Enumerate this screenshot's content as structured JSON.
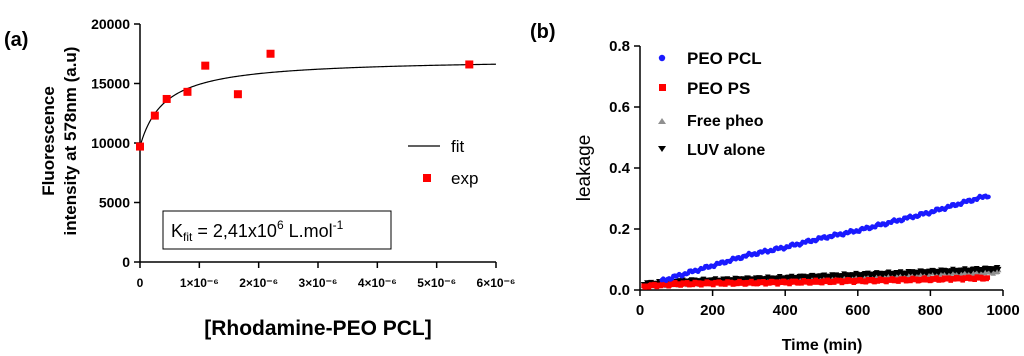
{
  "chart_data": [
    {
      "type": "scatter",
      "panel_label": "(a)",
      "xlabel": "[Rhodamine-PEO PCL]",
      "ylabel": [
        "Fluorescence",
        "intensity at 578nm (a.u)"
      ],
      "xlim": [
        0,
        6e-06
      ],
      "ylim": [
        0,
        20000
      ],
      "x_ticks": [
        0,
        1e-06,
        2e-06,
        3e-06,
        4e-06,
        5e-06,
        6e-06
      ],
      "x_tick_labels": [
        "0",
        "1×10⁻⁶",
        "2×10⁻⁶",
        "3×10⁻⁶",
        "4×10⁻⁶",
        "5×10⁻⁶",
        "6×10⁻⁶"
      ],
      "y_ticks": [
        0,
        5000,
        10000,
        15000,
        20000
      ],
      "y_tick_labels": [
        "0",
        "5000",
        "10000",
        "15000",
        "20000"
      ],
      "grid": false,
      "legend_position": "right",
      "legend": [
        {
          "label": "fit",
          "style": "line",
          "color": "#000000"
        },
        {
          "label": "exp",
          "style": "square",
          "color": "#ff0000"
        }
      ],
      "annotation": {
        "prefix": "K",
        "sub": "fit",
        "mid": " = 2,41x10",
        "sup": "6",
        "post": " L.mol",
        "sup2": "-1"
      },
      "series": [
        {
          "name": "exp",
          "color": "#ff0000",
          "x": [
            0,
            2.5e-07,
            4.5e-07,
            8e-07,
            1.1e-06,
            1.65e-06,
            2.2e-06,
            5.55e-06
          ],
          "y": [
            9700,
            12300,
            13700,
            14300,
            16500,
            14100,
            17500,
            16600
          ]
        },
        {
          "name": "fit",
          "color": "#000000",
          "model": "y = y0 + A*x/(Kd + x)",
          "params": {
            "y0": 9700,
            "A": 7400,
            "Kd": 4.15e-07
          }
        }
      ]
    },
    {
      "type": "scatter",
      "panel_label": "(b)",
      "xlabel": "Time (min)",
      "ylabel": "leakage",
      "xlim": [
        0,
        1000
      ],
      "ylim": [
        0,
        0.8
      ],
      "x_ticks": [
        0,
        200,
        400,
        600,
        800,
        1000
      ],
      "x_tick_labels": [
        "0",
        "200",
        "400",
        "600",
        "800",
        "1000"
      ],
      "y_ticks": [
        0,
        0.2,
        0.4,
        0.6,
        0.8
      ],
      "y_tick_labels": [
        "0.0",
        "0.2",
        "0.4",
        "0.6",
        "0.8"
      ],
      "grid": false,
      "legend_position": "top-left",
      "series": [
        {
          "name": "PEO PCL",
          "color": "#1a1aff",
          "marker": "circle",
          "points": [
            [
              60,
              0.03
            ],
            [
              100,
              0.045
            ],
            [
              200,
              0.08
            ],
            [
              300,
              0.115
            ],
            [
              400,
              0.14
            ],
            [
              500,
              0.17
            ],
            [
              600,
              0.195
            ],
            [
              700,
              0.225
            ],
            [
              800,
              0.255
            ],
            [
              900,
              0.29
            ],
            [
              960,
              0.31
            ]
          ]
        },
        {
          "name": "PEO PS",
          "color": "#ff0000",
          "marker": "square",
          "points": [
            [
              10,
              0.012
            ],
            [
              100,
              0.02
            ],
            [
              200,
              0.022
            ],
            [
              400,
              0.025
            ],
            [
              600,
              0.03
            ],
            [
              800,
              0.035
            ],
            [
              960,
              0.04
            ]
          ]
        },
        {
          "name": "Free pheo",
          "color": "#909090",
          "marker": "triangle-up",
          "points": [
            [
              10,
              0.015
            ],
            [
              200,
              0.025
            ],
            [
              400,
              0.035
            ],
            [
              600,
              0.045
            ],
            [
              800,
              0.055
            ],
            [
              990,
              0.06
            ]
          ]
        },
        {
          "name": "LUV alone",
          "color": "#000000",
          "marker": "triangle-down",
          "points": [
            [
              10,
              0.02
            ],
            [
              100,
              0.028
            ],
            [
              200,
              0.032
            ],
            [
              400,
              0.04
            ],
            [
              600,
              0.05
            ],
            [
              800,
              0.06
            ],
            [
              990,
              0.07
            ]
          ]
        }
      ]
    }
  ]
}
